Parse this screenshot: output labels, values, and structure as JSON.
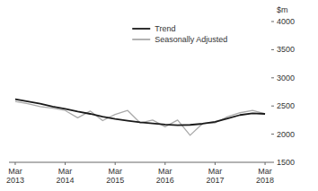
{
  "chart_data": {
    "type": "line",
    "ylabel": "$m",
    "categories": [
      "Mar\n2013",
      null,
      null,
      null,
      "Mar\n2014",
      null,
      null,
      null,
      "Mar\n2015",
      null,
      null,
      null,
      "Mar\n2016",
      null,
      null,
      null,
      "Mar\n2017",
      null,
      null,
      null,
      "Mar\n2018"
    ],
    "series": [
      {
        "name": "Seasonally Adjusted",
        "color": "#aaaaaa",
        "values": [
          2580,
          2540,
          2490,
          2460,
          2420,
          2290,
          2410,
          2240,
          2350,
          2420,
          2200,
          2250,
          2130,
          2250,
          1980,
          2190,
          2200,
          2310,
          2380,
          2420,
          2360
        ]
      },
      {
        "name": "Trend",
        "color": "#1a1a1a",
        "values": [
          2620,
          2580,
          2540,
          2490,
          2450,
          2400,
          2360,
          2310,
          2270,
          2240,
          2210,
          2190,
          2170,
          2160,
          2165,
          2185,
          2220,
          2280,
          2340,
          2370,
          2360
        ]
      }
    ],
    "ylim": [
      1500,
      4000
    ],
    "yticks": [
      1500,
      2000,
      2500,
      3000,
      3500,
      4000
    ],
    "grid": false,
    "legend": "upper right"
  }
}
